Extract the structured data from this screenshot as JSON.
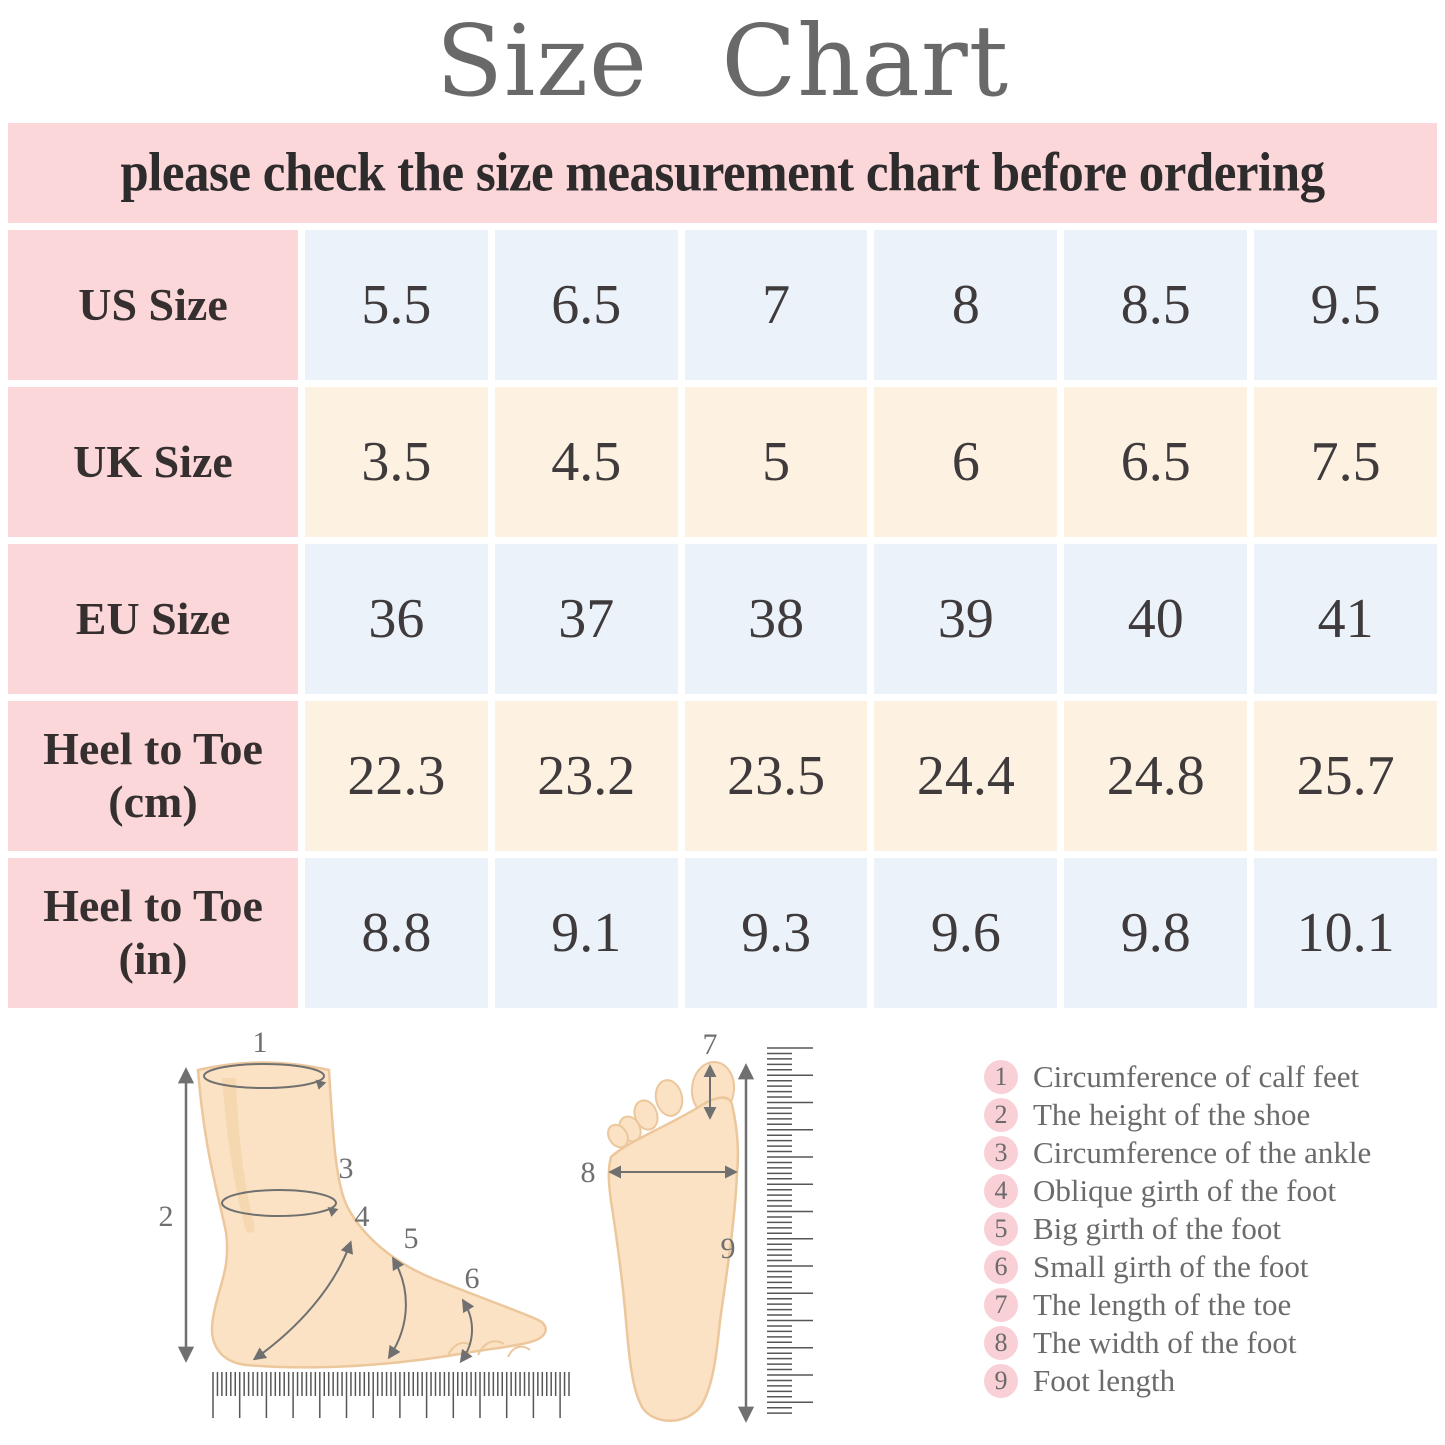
{
  "page": {
    "title": "Size Chart",
    "banner": "please check the size measurement chart before ordering"
  },
  "size_table": {
    "rows": [
      {
        "label": "US Size",
        "values": [
          "5.5",
          "6.5",
          "7",
          "8",
          "8.5",
          "9.5"
        ]
      },
      {
        "label": "UK Size",
        "values": [
          "3.5",
          "4.5",
          "5",
          "6",
          "6.5",
          "7.5"
        ]
      },
      {
        "label": "EU Size",
        "values": [
          "36",
          "37",
          "38",
          "39",
          "40",
          "41"
        ]
      },
      {
        "label": "Heel to Toe\n(cm)",
        "values": [
          "22.3",
          "23.2",
          "23.5",
          "24.4",
          "24.8",
          "25.7"
        ]
      },
      {
        "label": "Heel to Toe\n(in)",
        "values": [
          "8.8",
          "9.1",
          "9.3",
          "9.6",
          "9.8",
          "10.1"
        ]
      }
    ]
  },
  "chart_data": {
    "type": "table",
    "title": "Size Chart",
    "columns": [
      "US Size",
      "UK Size",
      "EU Size",
      "Heel to Toe (cm)",
      "Heel to Toe (in)"
    ],
    "rows": [
      [
        "5.5",
        "3.5",
        "36",
        "22.3",
        "8.8"
      ],
      [
        "6.5",
        "4.5",
        "37",
        "23.2",
        "9.1"
      ],
      [
        "7",
        "5",
        "38",
        "23.5",
        "9.3"
      ],
      [
        "8",
        "6",
        "39",
        "24.4",
        "9.6"
      ],
      [
        "8.5",
        "6.5",
        "40",
        "24.8",
        "9.8"
      ],
      [
        "9.5",
        "7.5",
        "41",
        "25.7",
        "10.1"
      ]
    ]
  },
  "diagram": {
    "side_markers": [
      "1",
      "2",
      "3",
      "4",
      "5",
      "6"
    ],
    "top_markers": [
      "7",
      "8",
      "9"
    ]
  },
  "legend": {
    "items": [
      {
        "num": "1",
        "label": "Circumference of calf feet"
      },
      {
        "num": "2",
        "label": "The height of the shoe"
      },
      {
        "num": "3",
        "label": "Circumference of the ankle"
      },
      {
        "num": "4",
        "label": "Oblique girth of the foot"
      },
      {
        "num": "5",
        "label": "Big girth of the foot"
      },
      {
        "num": "6",
        "label": "Small girth of the foot"
      },
      {
        "num": "7",
        "label": "The length of the toe"
      },
      {
        "num": "8",
        "label": "The width of the foot"
      },
      {
        "num": "9",
        "label": "Foot length"
      }
    ]
  },
  "colors": {
    "pink": "#fbd7d9",
    "blue": "#ebf2fa",
    "cream": "#fdf1e1",
    "legend_circle": "#f9d0d5",
    "title_gray": "#696969",
    "foot_fill": "#fbe2c4"
  }
}
